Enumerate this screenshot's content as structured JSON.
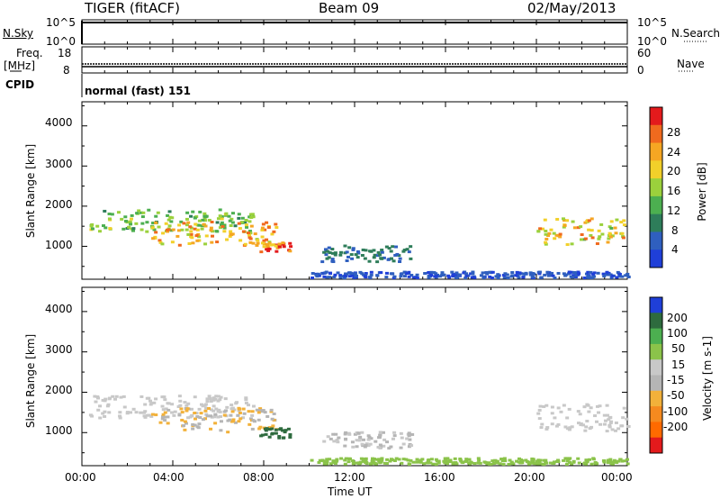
{
  "header": {
    "radar": "TIGER (fitACF)",
    "beam": "Beam 09",
    "date": "02/May/2013"
  },
  "sky_panel": {
    "left_label": "N.Sky",
    "right_label": "N.Search",
    "left_ticks": [
      "10^5",
      "10^0"
    ],
    "right_ticks": [
      "10^5",
      "10^0"
    ]
  },
  "freq_panel": {
    "label_line1": "Freq.",
    "label_line2": "[MHz]",
    "right_label": "Nave",
    "left_ticks": [
      "18",
      "8"
    ],
    "right_ticks": [
      "60",
      "0"
    ]
  },
  "cpid_panel": {
    "label": "CPID",
    "mode": "normal (fast) 151"
  },
  "time_axis": {
    "title": "Time UT",
    "ticks": [
      "00:00",
      "04:00",
      "08:00",
      "12:00",
      "16:00",
      "20:00",
      "00:00"
    ]
  },
  "colors": {
    "power_scale": [
      "#1f3fd8",
      "#2f5fbf",
      "#2e7d5a",
      "#4caf50",
      "#9bd13c",
      "#f2d02a",
      "#f5a623",
      "#f06a1e",
      "#e31a1c"
    ],
    "velocity_scale": [
      "#1f3fd8",
      "#2e6b3e",
      "#4caf50",
      "#8bc34a",
      "#c8c8c8",
      "#b5b5b5",
      "#f2b13a",
      "#f58a1f",
      "#ff6a00",
      "#e31a1c"
    ]
  },
  "chart_data": [
    {
      "type": "heatmap",
      "quantity": "power",
      "ylabel": "Slant Range [km]",
      "xlabel": "",
      "ylim": [
        180,
        4600
      ],
      "yticks": [
        "1000",
        "2000",
        "3000",
        "4000"
      ],
      "colorbar": {
        "label": "Power [dB]",
        "ticks": [
          "28",
          "24",
          "20",
          "16",
          "12",
          "8",
          "4"
        ]
      },
      "blobs": [
        {
          "t": [
            0.3,
            7.5
          ],
          "r": [
            1350,
            1900
          ],
          "value": 14
        },
        {
          "t": [
            3.0,
            8.5
          ],
          "r": [
            1000,
            1600
          ],
          "value": 22
        },
        {
          "t": [
            7.8,
            9.2
          ],
          "r": [
            850,
            1100
          ],
          "value": 28
        },
        {
          "t": [
            10.5,
            14.5
          ],
          "r": [
            600,
            1000
          ],
          "value": 8
        },
        {
          "t": [
            20.0,
            24.0
          ],
          "r": [
            1000,
            1700
          ],
          "value": 20
        },
        {
          "t": [
            10.0,
            24.0
          ],
          "r": [
            200,
            350
          ],
          "value": 4
        }
      ]
    },
    {
      "type": "heatmap",
      "quantity": "velocity",
      "ylabel": "Slant Range [km]",
      "xlabel": "Time UT",
      "ylim": [
        180,
        4600
      ],
      "yticks": [
        "1000",
        "2000",
        "3000",
        "4000"
      ],
      "colorbar": {
        "label": "Velocity [m s-1]",
        "ticks": [
          "200",
          "100",
          "50",
          "15",
          "-15",
          "-50",
          "-100",
          "-200"
        ]
      },
      "blobs": [
        {
          "t": [
            0.3,
            7.5
          ],
          "r": [
            1350,
            1900
          ],
          "value": -10
        },
        {
          "t": [
            3.0,
            8.5
          ],
          "r": [
            1000,
            1600
          ],
          "value": -50
        },
        {
          "t": [
            7.8,
            9.2
          ],
          "r": [
            850,
            1100
          ],
          "value": 150
        },
        {
          "t": [
            10.5,
            14.5
          ],
          "r": [
            600,
            1000
          ],
          "value": -15
        },
        {
          "t": [
            20.0,
            24.0
          ],
          "r": [
            1000,
            1700
          ],
          "value": 10
        },
        {
          "t": [
            10.0,
            24.0
          ],
          "r": [
            200,
            350
          ],
          "value": 30
        }
      ]
    }
  ]
}
